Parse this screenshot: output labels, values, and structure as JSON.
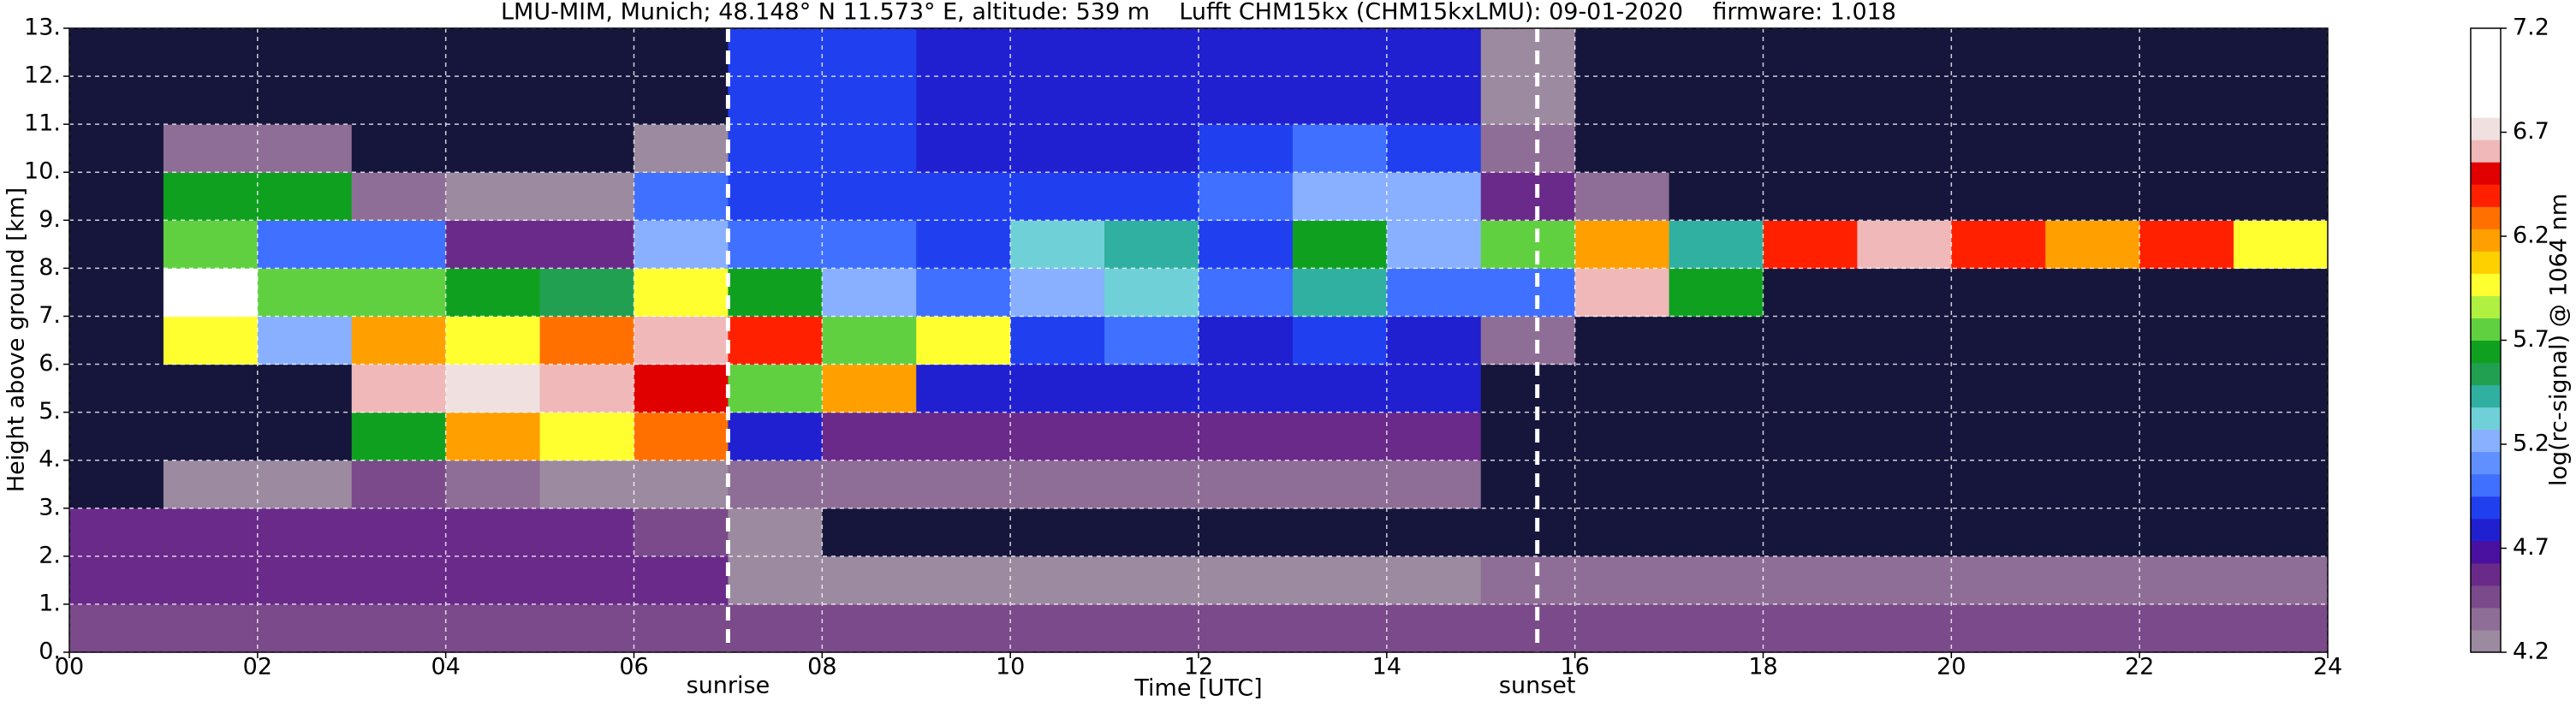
{
  "chart_data": {
    "type": "heatmap",
    "title": "LMU-MIM, Munich; 48.148° N 11.573° E, altitude: 539 m    Lufft CHM15kx (CHM15kxLMU): 09-01-2020    firmware: 1.018",
    "xlabel": "Time [UTC]",
    "ylabel": "Height above ground [km]",
    "xlim": [
      0,
      24
    ],
    "ylim": [
      0,
      13
    ],
    "xticks": [
      {
        "value": 0,
        "label": "00"
      },
      {
        "value": 2,
        "label": "02"
      },
      {
        "value": 4,
        "label": "04"
      },
      {
        "value": 6,
        "label": "06"
      },
      {
        "value": 8,
        "label": "08"
      },
      10,
      12,
      14,
      16,
      18,
      20,
      22,
      24
    ],
    "yticks": [
      {
        "value": 0,
        "label": "0."
      },
      {
        "value": 1,
        "label": "1."
      },
      {
        "value": 2,
        "label": "2."
      },
      {
        "value": 3,
        "label": "3."
      },
      {
        "value": 4,
        "label": "4."
      },
      {
        "value": 5,
        "label": "5."
      },
      {
        "value": 6,
        "label": "6."
      },
      {
        "value": 7,
        "label": "7."
      },
      {
        "value": 8,
        "label": "8."
      },
      {
        "value": 9,
        "label": "9."
      },
      {
        "value": 10,
        "label": "10."
      },
      {
        "value": 11,
        "label": "11."
      },
      {
        "value": 12,
        "label": "12."
      },
      {
        "value": 13,
        "label": "13."
      }
    ],
    "grid": true,
    "xbins": [
      0,
      1,
      2,
      3,
      4,
      5,
      6,
      7,
      8,
      9,
      10,
      11,
      12,
      13,
      14,
      15,
      16,
      17,
      18,
      19,
      20,
      21,
      22,
      23,
      24
    ],
    "ybins": [
      0,
      1,
      2,
      3,
      4,
      5,
      6,
      7,
      8,
      9,
      10,
      11,
      12,
      13
    ],
    "z": [
      [
        4.5,
        4.5,
        4.5,
        4.5,
        4.5,
        4.5,
        4.5,
        4.5,
        4.5,
        4.5,
        4.5,
        4.5,
        4.5,
        4.5,
        4.5,
        4.5,
        4.5,
        4.5,
        4.5,
        4.5,
        4.5,
        4.5,
        4.5,
        4.5
      ],
      [
        4.6,
        4.6,
        4.6,
        4.6,
        4.6,
        4.6,
        4.6,
        4.2,
        4.2,
        4.2,
        4.2,
        4.2,
        4.2,
        4.2,
        4.2,
        4.4,
        4.4,
        4.4,
        4.4,
        4.4,
        4.4,
        4.4,
        4.4,
        4.4
      ],
      [
        4.6,
        4.6,
        4.6,
        4.6,
        4.6,
        4.6,
        4.5,
        4.2,
        4.0,
        4.0,
        4.0,
        4.0,
        4.0,
        4.0,
        4.0,
        4.0,
        4.0,
        4.0,
        4.0,
        4.0,
        4.0,
        4.0,
        4.0,
        4.0
      ],
      [
        4.0,
        4.3,
        4.3,
        4.5,
        4.4,
        4.3,
        4.3,
        4.4,
        4.4,
        4.4,
        4.4,
        4.4,
        4.4,
        4.4,
        4.4,
        4.0,
        4.0,
        4.0,
        4.0,
        4.0,
        4.0,
        4.0,
        4.0,
        4.0
      ],
      [
        4.0,
        4.0,
        4.0,
        5.6,
        6.2,
        6.0,
        6.3,
        4.8,
        4.6,
        4.6,
        4.6,
        4.6,
        4.6,
        4.6,
        4.6,
        4.0,
        4.0,
        4.0,
        4.0,
        4.0,
        4.0,
        4.0,
        4.0,
        4.0
      ],
      [
        4.0,
        4.0,
        4.0,
        6.6,
        6.7,
        6.6,
        6.5,
        5.8,
        6.2,
        4.8,
        4.8,
        4.8,
        4.8,
        4.8,
        4.8,
        4.0,
        4.0,
        4.0,
        4.0,
        4.0,
        4.0,
        4.0,
        4.0,
        4.0
      ],
      [
        4.0,
        6.0,
        5.2,
        6.2,
        6.0,
        6.3,
        6.6,
        6.4,
        5.8,
        6.0,
        4.9,
        5.0,
        4.8,
        4.9,
        4.8,
        4.4,
        4.0,
        4.0,
        4.0,
        4.0,
        4.0,
        4.0,
        4.0,
        4.0
      ],
      [
        4.0,
        6.8,
        5.8,
        5.8,
        5.6,
        5.5,
        6.0,
        5.6,
        5.2,
        5.0,
        5.2,
        5.3,
        5.0,
        5.4,
        5.0,
        5.0,
        6.6,
        5.6,
        4.0,
        4.0,
        4.0,
        4.0,
        4.0,
        4.0
      ],
      [
        4.0,
        5.8,
        5.0,
        5.0,
        4.6,
        4.6,
        5.2,
        5.0,
        5.0,
        4.9,
        5.3,
        5.4,
        4.9,
        5.6,
        5.2,
        5.8,
        6.2,
        5.4,
        6.4,
        6.6,
        6.4,
        6.2,
        6.4,
        6.0
      ],
      [
        4.0,
        5.6,
        5.6,
        4.4,
        4.2,
        4.2,
        5.0,
        4.9,
        4.9,
        4.9,
        4.9,
        4.9,
        5.0,
        5.2,
        5.2,
        4.6,
        4.4,
        4.0,
        4.0,
        4.0,
        4.0,
        4.0,
        4.0,
        4.0
      ],
      [
        4.0,
        4.4,
        4.4,
        4.0,
        4.0,
        4.0,
        4.2,
        4.9,
        4.9,
        4.8,
        4.8,
        4.8,
        4.9,
        5.0,
        4.9,
        4.4,
        4.0,
        4.0,
        4.0,
        4.0,
        4.0,
        4.0,
        4.0,
        4.0
      ],
      [
        4.0,
        4.0,
        4.0,
        4.0,
        4.0,
        4.0,
        4.0,
        4.9,
        4.9,
        4.8,
        4.8,
        4.8,
        4.8,
        4.8,
        4.8,
        4.2,
        4.0,
        4.0,
        4.0,
        4.0,
        4.0,
        4.0,
        4.0,
        4.0
      ],
      [
        4.0,
        4.0,
        4.0,
        4.0,
        4.0,
        4.0,
        4.0,
        4.9,
        4.9,
        4.8,
        4.8,
        4.8,
        4.8,
        4.8,
        4.8,
        4.2,
        4.0,
        4.0,
        4.0,
        4.0,
        4.0,
        4.0,
        4.0,
        4.0
      ]
    ],
    "zlim": [
      4.2,
      7.2
    ],
    "colors": [
      "#9c8aa0",
      "#8e6e96",
      "#7a4a8a",
      "#6a2a8a",
      "#4a10a0",
      "#2020d0",
      "#2040f0",
      "#4070ff",
      "#6090ff",
      "#88b0ff",
      "#70d0d8",
      "#30b0a0",
      "#20a050",
      "#10a020",
      "#60d040",
      "#b0f040",
      "#ffff30",
      "#ffd000",
      "#ffa000",
      "#ff7000",
      "#ff2000",
      "#e00000",
      "#f0b8b8",
      "#f0e0e0",
      "#ffffff",
      "#ffffff",
      "#ffffff",
      "#ffffff"
    ],
    "under_color": "#16163c",
    "colorbar": {
      "label": "log(rc-signal) @ 1064 nm",
      "ticks": [
        4.2,
        4.7,
        5.2,
        5.7,
        6.2,
        6.7,
        7.2
      ]
    },
    "annotations": [
      {
        "text": "sunrise",
        "x": 7.0
      },
      {
        "text": "sunset",
        "x": 15.6
      }
    ]
  }
}
